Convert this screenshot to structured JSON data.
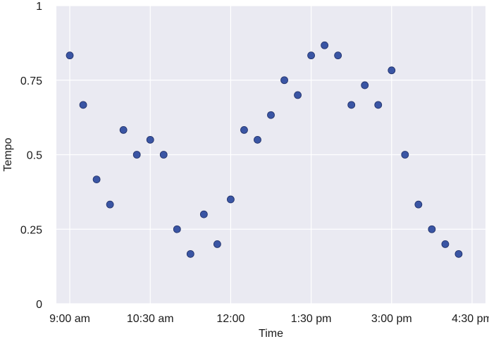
{
  "chart_data": {
    "type": "scatter",
    "xlabel": "Time",
    "ylabel": "Tempo",
    "ylim": [
      0,
      1
    ],
    "xlim": [
      "8:45 am",
      "4:45 pm"
    ],
    "x_ticks": [
      "9:00 am",
      "10:30 am",
      "12:00",
      "1:30 pm",
      "3:00 pm",
      "4:30 pm"
    ],
    "y_ticks": [
      "0",
      "0.25",
      "0.5",
      "0.75",
      "1"
    ],
    "grid": true,
    "colors": {
      "background": "#eaeaf2",
      "grid": "#ffffff",
      "marker": "#3a55a4",
      "marker_edge": "#1f2f66"
    },
    "series": [
      {
        "points": [
          {
            "x": "9:00 am",
            "y": 0.833
          },
          {
            "x": "9:15 am",
            "y": 0.667
          },
          {
            "x": "9:30 am",
            "y": 0.417
          },
          {
            "x": "9:45 am",
            "y": 0.333
          },
          {
            "x": "10:00 am",
            "y": 0.583
          },
          {
            "x": "10:15 am",
            "y": 0.5
          },
          {
            "x": "10:30 am",
            "y": 0.55
          },
          {
            "x": "10:45 am",
            "y": 0.5
          },
          {
            "x": "11:00 am",
            "y": 0.25
          },
          {
            "x": "11:15 am",
            "y": 0.167
          },
          {
            "x": "11:30 am",
            "y": 0.3
          },
          {
            "x": "11:45 am",
            "y": 0.2
          },
          {
            "x": "12:00 pm",
            "y": 0.35
          },
          {
            "x": "12:15 pm",
            "y": 0.583
          },
          {
            "x": "12:30 pm",
            "y": 0.55
          },
          {
            "x": "12:45 pm",
            "y": 0.633
          },
          {
            "x": "1:00 pm",
            "y": 0.75
          },
          {
            "x": "1:15 pm",
            "y": 0.7
          },
          {
            "x": "1:30 pm",
            "y": 0.833
          },
          {
            "x": "1:45 pm",
            "y": 0.867
          },
          {
            "x": "2:00 pm",
            "y": 0.833
          },
          {
            "x": "2:15 pm",
            "y": 0.667
          },
          {
            "x": "2:30 pm",
            "y": 0.733
          },
          {
            "x": "2:45 pm",
            "y": 0.667
          },
          {
            "x": "3:00 pm",
            "y": 0.783
          },
          {
            "x": "3:15 pm",
            "y": 0.5
          },
          {
            "x": "3:30 pm",
            "y": 0.333
          },
          {
            "x": "3:45 pm",
            "y": 0.25
          },
          {
            "x": "4:00 pm",
            "y": 0.2
          },
          {
            "x": "4:15 pm",
            "y": 0.167
          }
        ]
      }
    ]
  }
}
